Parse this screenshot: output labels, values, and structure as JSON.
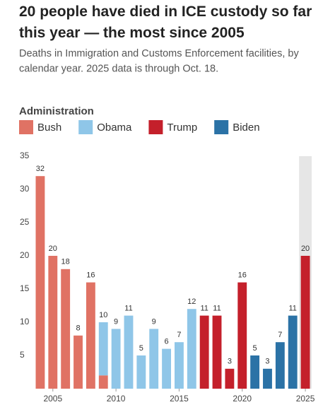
{
  "chart_data": {
    "type": "stacked-bar",
    "title": "20 people have died in ICE custody so far this year — the most since 2005",
    "subtitle": "Deaths in Immigration and Customs Enforcement facilities, by calendar year. 2025 data is through Oct. 18.",
    "legend_title": "Administration",
    "x": [
      2004,
      2005,
      2006,
      2007,
      2008,
      2009,
      2010,
      2011,
      2012,
      2013,
      2014,
      2015,
      2016,
      2017,
      2018,
      2019,
      2020,
      2021,
      2022,
      2023,
      2024,
      2025
    ],
    "series": [
      {
        "name": "Bush",
        "color": "#e07264",
        "values": [
          32,
          20,
          18,
          8,
          16,
          2,
          null,
          null,
          null,
          null,
          null,
          null,
          null,
          null,
          null,
          null,
          null,
          null,
          null,
          null,
          null,
          null
        ]
      },
      {
        "name": "Obama",
        "color": "#8fc6e8",
        "values": [
          null,
          null,
          null,
          null,
          null,
          8,
          9,
          11,
          5,
          9,
          6,
          7,
          12,
          null,
          null,
          null,
          null,
          null,
          null,
          null,
          null,
          null
        ]
      },
      {
        "name": "Trump",
        "color": "#c4202b",
        "values": [
          null,
          null,
          null,
          null,
          null,
          null,
          null,
          null,
          null,
          null,
          null,
          null,
          null,
          11,
          11,
          3,
          16,
          null,
          null,
          null,
          null,
          20
        ]
      },
      {
        "name": "Biden",
        "color": "#2b72a6",
        "values": [
          null,
          null,
          null,
          null,
          null,
          null,
          null,
          null,
          null,
          null,
          null,
          null,
          null,
          null,
          null,
          null,
          null,
          5,
          3,
          7,
          11,
          null
        ]
      }
    ],
    "totals": [
      32,
      20,
      18,
      8,
      16,
      10,
      9,
      11,
      5,
      9,
      6,
      7,
      12,
      11,
      11,
      3,
      16,
      5,
      3,
      7,
      11,
      20
    ],
    "highlight": 2025,
    "xlim": [
      2003.5,
      2025.5
    ],
    "xticks": [
      2005,
      2010,
      2015,
      2020,
      2025
    ],
    "ylim": [
      0,
      35
    ],
    "yticks": [
      5,
      10,
      15,
      20,
      25,
      30,
      35
    ]
  }
}
